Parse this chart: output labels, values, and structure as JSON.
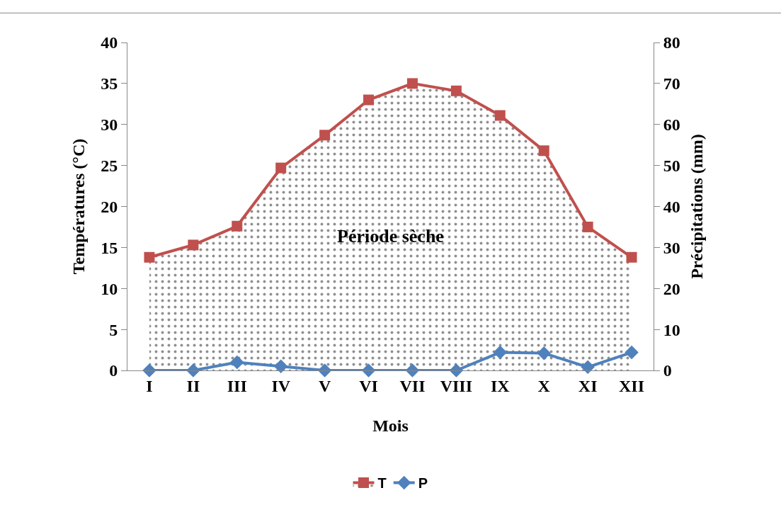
{
  "chart_data": {
    "type": "line",
    "xlabel": "Mois",
    "ylabel": "Températures (°C)",
    "y2label": "Précipitations (mm)",
    "categories": [
      "I",
      "II",
      "III",
      "IV",
      "V",
      "VI",
      "VII",
      "VIII",
      "IX",
      "X",
      "XI",
      "XII"
    ],
    "series": [
      {
        "name": "T",
        "type": "area",
        "color": "#c0504d",
        "values": [
          13.8,
          15.3,
          17.6,
          24.7,
          28.7,
          33.0,
          35.0,
          34.1,
          31.1,
          26.8,
          17.5,
          13.8
        ]
      },
      {
        "name": "P",
        "axis": "y2",
        "color": "#4f81bd",
        "marker": "diamond",
        "values": [
          0,
          0,
          2.0,
          1.0,
          0,
          0,
          0,
          0,
          4.4,
          4.2,
          0.8,
          4.4
        ]
      }
    ],
    "marker": "square",
    "ylim": [
      0,
      40
    ],
    "yticks": [
      0,
      5,
      10,
      15,
      20,
      25,
      30,
      35,
      40
    ],
    "y2lim": [
      0,
      80
    ],
    "y2ticks": [
      0,
      10,
      20,
      30,
      40,
      50,
      60,
      70,
      80
    ],
    "annotations": [
      "Période sèche"
    ],
    "legend": "bottom"
  }
}
